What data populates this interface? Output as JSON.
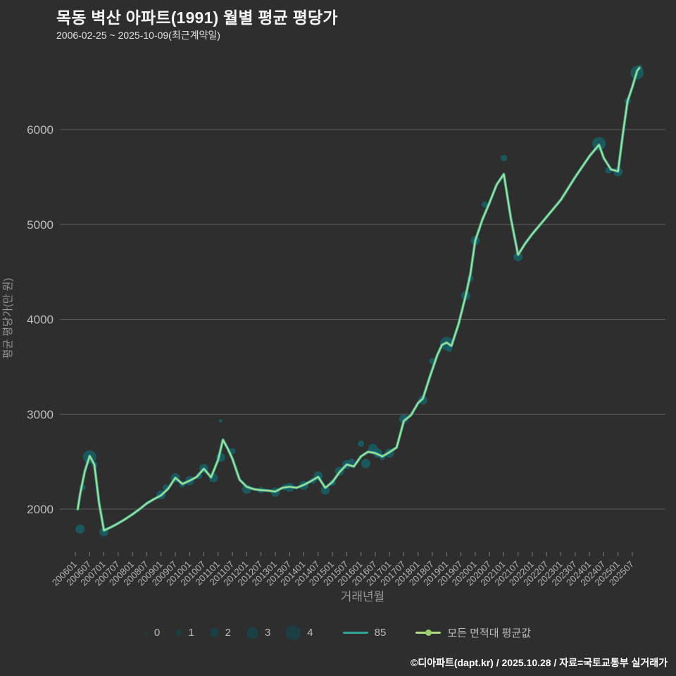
{
  "title": "목동 벽산 아파트(1991) 월별 평균 평당가",
  "subtitle": "2006-02-25 ~ 2025-10-09(최근계약일)",
  "footer": "©디아파트(dapt.kr) / 2025.10.28 / 자료=국토교통부 실거래가",
  "colors": {
    "background": "#2e2e2e",
    "grid": "#5b5c60",
    "tick_label": "#bdbec0",
    "axis_title": "#949598",
    "line_85": "#2fa597",
    "line_avg": "#abe093",
    "bubble": "#175f66"
  },
  "chart_data": {
    "type": "line",
    "title": "목동 벽산 아파트(1991) 월별 평균 평당가",
    "xlabel": "거래년월",
    "ylabel": "평균 평당가(만 원)",
    "ylim": [
      1600,
      6800
    ],
    "yticks": [
      2000,
      3000,
      4000,
      5000,
      6000
    ],
    "xticks": [
      "200601",
      "200607",
      "200701",
      "200707",
      "200801",
      "200807",
      "200901",
      "200907",
      "201001",
      "201007",
      "201101",
      "201107",
      "201201",
      "201207",
      "201301",
      "201307",
      "201401",
      "201407",
      "201501",
      "201507",
      "201601",
      "201607",
      "201701",
      "201707",
      "201801",
      "201807",
      "201901",
      "201907",
      "202001",
      "202007",
      "202101",
      "202107",
      "202201",
      "202207",
      "202301",
      "202307",
      "202401",
      "202407",
      "202501",
      "202507"
    ],
    "legend_sizes": [
      "0",
      "1",
      "2",
      "3",
      "4"
    ],
    "series_labels": [
      "85",
      "모든 면적대 평균값"
    ],
    "series": [
      {
        "name": "85",
        "type": "scatter-bubble",
        "points": [
          [
            "200603",
            1790,
            2
          ],
          [
            "200604",
            2230,
            1
          ],
          [
            "200607",
            2550,
            3
          ],
          [
            "200609",
            2470,
            1
          ],
          [
            "200701",
            1760,
            2
          ],
          [
            "200901",
            2150,
            2
          ],
          [
            "200903",
            2230,
            1
          ],
          [
            "200907",
            2330,
            2
          ],
          [
            "200910",
            2260,
            1
          ],
          [
            "201001",
            2300,
            2
          ],
          [
            "201005",
            2350,
            1
          ],
          [
            "201007",
            2430,
            2
          ],
          [
            "201011",
            2330,
            2
          ],
          [
            "201102",
            2930,
            0
          ],
          [
            "201102",
            2545,
            2
          ],
          [
            "201107",
            2610,
            1
          ],
          [
            "201201",
            2210,
            2
          ],
          [
            "201207",
            2200,
            1
          ],
          [
            "201301",
            2180,
            2
          ],
          [
            "201305",
            2230,
            1
          ],
          [
            "201307",
            2230,
            2
          ],
          [
            "201401",
            2250,
            2
          ],
          [
            "201405",
            2300,
            1
          ],
          [
            "201407",
            2350,
            2
          ],
          [
            "201410",
            2200,
            2
          ],
          [
            "201501",
            2280,
            1
          ],
          [
            "201504",
            2400,
            2
          ],
          [
            "201507",
            2470,
            2
          ],
          [
            "201509",
            2500,
            1
          ],
          [
            "201601",
            2690,
            1
          ],
          [
            "201603",
            2480,
            2
          ],
          [
            "201606",
            2640,
            2
          ],
          [
            "201608",
            2590,
            2
          ],
          [
            "201610",
            2550,
            1
          ],
          [
            "201701",
            2590,
            2
          ],
          [
            "201707",
            2950,
            2
          ],
          [
            "201803",
            3150,
            2
          ],
          [
            "201807",
            3560,
            1
          ],
          [
            "201901",
            3745,
            3
          ],
          [
            "201902",
            3690,
            1
          ],
          [
            "201909",
            4250,
            2
          ],
          [
            "201911",
            4430,
            1
          ],
          [
            "202001",
            4830,
            2
          ],
          [
            "202005",
            5210,
            1
          ],
          [
            "202101",
            5700,
            1
          ],
          [
            "202107",
            4660,
            2
          ],
          [
            "202405",
            5850,
            3
          ],
          [
            "202409",
            5570,
            1
          ],
          [
            "202501",
            5555,
            2
          ],
          [
            "202505",
            6300,
            1
          ],
          [
            "202509",
            6600,
            3
          ],
          [
            "202510",
            6650,
            1
          ]
        ]
      },
      {
        "name": "모든 면적대 평균값",
        "type": "line",
        "points": [
          [
            "200602",
            2000
          ],
          [
            "200603",
            2160
          ],
          [
            "200605",
            2400
          ],
          [
            "200607",
            2560
          ],
          [
            "200609",
            2470
          ],
          [
            "200611",
            2060
          ],
          [
            "200701",
            1775
          ],
          [
            "200704",
            1810
          ],
          [
            "200707",
            1850
          ],
          [
            "200710",
            1895
          ],
          [
            "200801",
            1945
          ],
          [
            "200804",
            2000
          ],
          [
            "200807",
            2060
          ],
          [
            "200810",
            2105
          ],
          [
            "200901",
            2145
          ],
          [
            "200904",
            2215
          ],
          [
            "200907",
            2330
          ],
          [
            "200910",
            2265
          ],
          [
            "201001",
            2300
          ],
          [
            "201004",
            2340
          ],
          [
            "201007",
            2425
          ],
          [
            "201010",
            2335
          ],
          [
            "201101",
            2520
          ],
          [
            "201103",
            2730
          ],
          [
            "201105",
            2640
          ],
          [
            "201107",
            2530
          ],
          [
            "201110",
            2310
          ],
          [
            "201201",
            2235
          ],
          [
            "201204",
            2210
          ],
          [
            "201207",
            2200
          ],
          [
            "201210",
            2195
          ],
          [
            "201301",
            2185
          ],
          [
            "201304",
            2225
          ],
          [
            "201307",
            2235
          ],
          [
            "201310",
            2225
          ],
          [
            "201401",
            2255
          ],
          [
            "201404",
            2295
          ],
          [
            "201407",
            2340
          ],
          [
            "201410",
            2225
          ],
          [
            "201501",
            2285
          ],
          [
            "201504",
            2390
          ],
          [
            "201507",
            2470
          ],
          [
            "201510",
            2450
          ],
          [
            "201601",
            2555
          ],
          [
            "201604",
            2605
          ],
          [
            "201607",
            2590
          ],
          [
            "201610",
            2555
          ],
          [
            "201701",
            2600
          ],
          [
            "201704",
            2650
          ],
          [
            "201707",
            2930
          ],
          [
            "201710",
            2990
          ],
          [
            "201801",
            3120
          ],
          [
            "201803",
            3165
          ],
          [
            "201806",
            3400
          ],
          [
            "201809",
            3620
          ],
          [
            "201811",
            3730
          ],
          [
            "201901",
            3755
          ],
          [
            "201903",
            3720
          ],
          [
            "201906",
            3950
          ],
          [
            "201909",
            4250
          ],
          [
            "201911",
            4480
          ],
          [
            "202001",
            4830
          ],
          [
            "202004",
            5050
          ],
          [
            "202007",
            5230
          ],
          [
            "202010",
            5420
          ],
          [
            "202101",
            5530
          ],
          [
            "202104",
            5060
          ],
          [
            "202107",
            4680
          ],
          [
            "202110",
            4800
          ],
          [
            "202201",
            4900
          ],
          [
            "202207",
            5080
          ],
          [
            "202301",
            5260
          ],
          [
            "202307",
            5500
          ],
          [
            "202401",
            5720
          ],
          [
            "202405",
            5840
          ],
          [
            "202407",
            5700
          ],
          [
            "202410",
            5580
          ],
          [
            "202501",
            5560
          ],
          [
            "202503",
            5950
          ],
          [
            "202505",
            6300
          ],
          [
            "202507",
            6450
          ],
          [
            "202509",
            6620
          ],
          [
            "202510",
            6650
          ]
        ]
      }
    ]
  }
}
